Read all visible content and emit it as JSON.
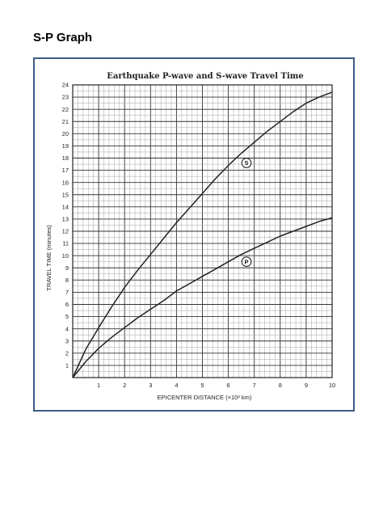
{
  "page": {
    "heading": "S-P Graph"
  },
  "chart_data": {
    "type": "line",
    "title": "Earthquake P-wave and S-wave Travel Time",
    "xlabel": "EPICENTER DISTANCE (×10³ km)",
    "ylabel": "TRAVEL TIME (minutes)",
    "xlim": [
      0,
      10
    ],
    "ylim": [
      0,
      24
    ],
    "x_ticks": [
      "1",
      "2",
      "3",
      "4",
      "5",
      "6",
      "7",
      "8",
      "9",
      "10"
    ],
    "y_ticks": [
      "1",
      "2",
      "3",
      "4",
      "5",
      "6",
      "7",
      "8",
      "9",
      "10",
      "11",
      "12",
      "13",
      "14",
      "15",
      "16",
      "17",
      "18",
      "19",
      "20",
      "21",
      "22",
      "23",
      "24"
    ],
    "grid": true,
    "series": [
      {
        "name": "S",
        "x": [
          0,
          0.5,
          1,
          1.5,
          2,
          2.5,
          3,
          3.5,
          4,
          4.5,
          5,
          5.5,
          6,
          6.5,
          7,
          7.5,
          8,
          8.5,
          9,
          9.5,
          10
        ],
        "y": [
          0,
          2.3,
          4.1,
          5.8,
          7.4,
          8.8,
          10.1,
          11.4,
          12.7,
          13.9,
          15.1,
          16.3,
          17.4,
          18.4,
          19.3,
          20.2,
          21.0,
          21.8,
          22.5,
          23.0,
          23.4
        ]
      },
      {
        "name": "P",
        "x": [
          0,
          0.5,
          1,
          1.5,
          2,
          2.5,
          3,
          3.5,
          4,
          4.5,
          5,
          5.5,
          6,
          6.5,
          7,
          7.5,
          8,
          8.5,
          9,
          9.5,
          10
        ],
        "y": [
          0,
          1.3,
          2.4,
          3.3,
          4.1,
          4.9,
          5.6,
          6.3,
          7.1,
          7.7,
          8.3,
          8.9,
          9.5,
          10.1,
          10.6,
          11.1,
          11.6,
          12.0,
          12.4,
          12.8,
          13.1
        ]
      }
    ],
    "curve_labels": [
      {
        "text": "S",
        "x": 6.7,
        "y": 17.6
      },
      {
        "text": "P",
        "x": 6.7,
        "y": 9.5
      }
    ],
    "colors": {
      "curve": "#222222",
      "major_grid": "#333333",
      "minor_grid": "#9a9a9a",
      "frame": "#3e5b86"
    }
  }
}
